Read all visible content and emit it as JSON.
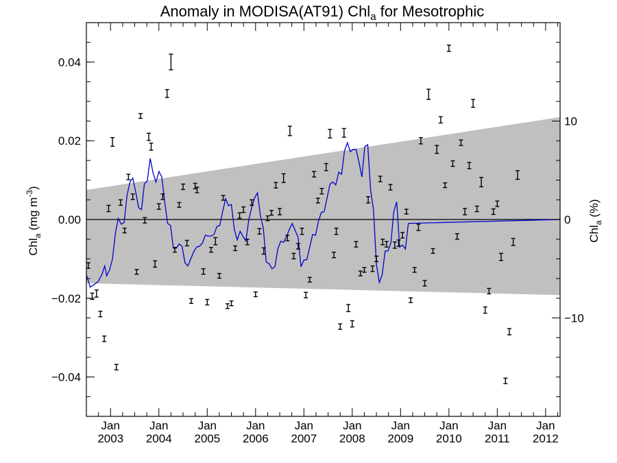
{
  "chart_data": {
    "type": "scatter",
    "title": "Anomaly in MODISA(AT91) Chl",
    "title_subscript": "a",
    "title_suffix": " for Mesotrophic",
    "ylabel_left": {
      "main": "Chl",
      "sub": "a",
      "units": " (mg m",
      "sup": "-3",
      "close": ")"
    },
    "ylabel_right": {
      "main": "Chl",
      "sub": "a",
      "units": " (%)"
    },
    "xlim": [
      2002.5,
      2012.3
    ],
    "ylim": [
      -0.05,
      0.05
    ],
    "ylim_right": [
      -20,
      20
    ],
    "x_month_label": "Jan",
    "x_ticks": [
      {
        "x": 2003.0,
        "year": "2003"
      },
      {
        "x": 2004.0,
        "year": "2004"
      },
      {
        "x": 2005.0,
        "year": "2005"
      },
      {
        "x": 2006.0,
        "year": "2006"
      },
      {
        "x": 2007.0,
        "year": "2007"
      },
      {
        "x": 2008.0,
        "year": "2008"
      },
      {
        "x": 2009.0,
        "year": "2009"
      },
      {
        "x": 2010.0,
        "year": "2010"
      },
      {
        "x": 2011.0,
        "year": "2011"
      },
      {
        "x": 2012.0,
        "year": "2012"
      }
    ],
    "y_ticks_left": [
      {
        "v": 0.04,
        "label": "0.04"
      },
      {
        "v": 0.02,
        "label": "0.02"
      },
      {
        "v": 0.0,
        "label": "0.00"
      },
      {
        "v": -0.02,
        "label": "−0.02"
      },
      {
        "v": -0.04,
        "label": "−0.04"
      }
    ],
    "y_ticks_right": [
      {
        "v": 10,
        "label": "10"
      },
      {
        "v": 0,
        "label": "0"
      },
      {
        "v": -10,
        "label": "−10"
      }
    ],
    "band": {
      "start": [
        2002.5,
        0.0075,
        -0.0162
      ],
      "end": [
        2012.3,
        0.026,
        -0.0192
      ],
      "color": "#c0c0c0"
    },
    "zero_line": 0,
    "line_color": "#0000cc",
    "marker_color": "#000000",
    "points": [
      [
        2002.54,
        -0.0117,
        0.0007
      ],
      [
        2002.62,
        -0.0195,
        0.0008
      ],
      [
        2002.71,
        -0.0188,
        0.0009
      ],
      [
        2002.79,
        -0.024,
        0.0007
      ],
      [
        2002.87,
        -0.0303,
        0.0007
      ],
      [
        2002.96,
        0.0028,
        0.0008
      ],
      [
        2003.04,
        0.0197,
        0.0011
      ],
      [
        2003.12,
        -0.0375,
        0.0007
      ],
      [
        2003.21,
        0.0043,
        0.0007
      ],
      [
        2003.29,
        -0.0028,
        0.0006
      ],
      [
        2003.37,
        0.0108,
        0.0007
      ],
      [
        2003.46,
        0.0058,
        0.0007
      ],
      [
        2003.54,
        -0.0133,
        0.0006
      ],
      [
        2003.62,
        0.0263,
        0.0006
      ],
      [
        2003.71,
        -0.0002,
        0.0007
      ],
      [
        2003.79,
        0.021,
        0.0009
      ],
      [
        2003.84,
        0.0185,
        0.0009
      ],
      [
        2003.92,
        -0.0113,
        0.0008
      ],
      [
        2004.0,
        0.0033,
        0.0007
      ],
      [
        2004.08,
        0.0058,
        0.0007
      ],
      [
        2004.17,
        0.032,
        0.001
      ],
      [
        2004.25,
        0.04,
        0.002
      ],
      [
        2004.33,
        -0.0077,
        0.0006
      ],
      [
        2004.42,
        0.0037,
        0.0006
      ],
      [
        2004.5,
        0.0083,
        0.0007
      ],
      [
        2004.58,
        -0.006,
        0.0007
      ],
      [
        2004.67,
        -0.0207,
        0.0006
      ],
      [
        2004.75,
        0.0085,
        0.0007
      ],
      [
        2004.79,
        0.0075,
        0.0007
      ],
      [
        2004.92,
        -0.0132,
        0.0007
      ],
      [
        2005.0,
        -0.021,
        0.0007
      ],
      [
        2005.08,
        -0.0077,
        0.0006
      ],
      [
        2005.17,
        -0.0055,
        0.0009
      ],
      [
        2005.25,
        -0.0143,
        0.0006
      ],
      [
        2005.33,
        0.0055,
        0.0006
      ],
      [
        2005.42,
        -0.022,
        0.0006
      ],
      [
        2005.5,
        -0.0213,
        0.0006
      ],
      [
        2005.58,
        -0.0073,
        0.0006
      ],
      [
        2005.67,
        0.001,
        0.0007
      ],
      [
        2005.75,
        0.0025,
        0.0007
      ],
      [
        2005.83,
        -0.0057,
        0.0007
      ],
      [
        2005.92,
        0.0043,
        0.0007
      ],
      [
        2006.0,
        -0.019,
        0.0006
      ],
      [
        2006.08,
        -0.003,
        0.0007
      ],
      [
        2006.17,
        -0.008,
        0.0008
      ],
      [
        2006.25,
        0.0003,
        0.0006
      ],
      [
        2006.33,
        0.0017,
        0.0006
      ],
      [
        2006.42,
        0.0087,
        0.0007
      ],
      [
        2006.5,
        0.002,
        0.0008
      ],
      [
        2006.58,
        0.0105,
        0.0011
      ],
      [
        2006.66,
        -0.0047,
        0.0007
      ],
      [
        2006.71,
        0.0225,
        0.0012
      ],
      [
        2006.79,
        -0.0093,
        0.0007
      ],
      [
        2006.88,
        -0.0068,
        0.0007
      ],
      [
        2006.96,
        -0.003,
        0.0008
      ],
      [
        2007.04,
        -0.0192,
        0.0007
      ],
      [
        2007.12,
        -0.0153,
        0.0006
      ],
      [
        2007.21,
        0.0115,
        0.0007
      ],
      [
        2007.29,
        0.0048,
        0.0006
      ],
      [
        2007.37,
        0.0072,
        0.0007
      ],
      [
        2007.46,
        0.0133,
        0.0009
      ],
      [
        2007.54,
        0.0218,
        0.0011
      ],
      [
        2007.62,
        -0.009,
        0.0007
      ],
      [
        2007.67,
        -0.003,
        0.0008
      ],
      [
        2007.75,
        -0.0272,
        0.0007
      ],
      [
        2007.83,
        0.022,
        0.0011
      ],
      [
        2007.92,
        -0.0225,
        0.0009
      ],
      [
        2008.0,
        -0.0265,
        0.0008
      ],
      [
        2008.08,
        -0.0063,
        0.0007
      ],
      [
        2008.17,
        -0.0137,
        0.0006
      ],
      [
        2008.25,
        -0.0128,
        0.0006
      ],
      [
        2008.33,
        0.005,
        0.0008
      ],
      [
        2008.42,
        -0.0125,
        0.0007
      ],
      [
        2008.5,
        -0.01,
        0.0007
      ],
      [
        2008.58,
        0.0103,
        0.0007
      ],
      [
        2008.63,
        -0.0057,
        0.0007
      ],
      [
        2008.71,
        -0.0063,
        0.0007
      ],
      [
        2008.79,
        0.0082,
        0.0007
      ],
      [
        2008.88,
        -0.0065,
        0.0008
      ],
      [
        2008.96,
        -0.006,
        0.0008
      ],
      [
        2009.04,
        -0.004,
        0.0007
      ],
      [
        2009.12,
        0.002,
        0.0006
      ],
      [
        2009.21,
        -0.0205,
        0.0006
      ],
      [
        2009.29,
        -0.0128,
        0.0006
      ],
      [
        2009.37,
        -0.002,
        0.0008
      ],
      [
        2009.42,
        0.02,
        0.0008
      ],
      [
        2009.5,
        -0.0162,
        0.0007
      ],
      [
        2009.58,
        0.0318,
        0.0013
      ],
      [
        2009.67,
        -0.008,
        0.0006
      ],
      [
        2009.75,
        0.0178,
        0.001
      ],
      [
        2009.83,
        0.0253,
        0.0008
      ],
      [
        2009.92,
        0.0087,
        0.0006
      ],
      [
        2010.0,
        0.0435,
        0.0008
      ],
      [
        2010.08,
        0.0142,
        0.0007
      ],
      [
        2010.17,
        -0.0043,
        0.0007
      ],
      [
        2010.25,
        0.0195,
        0.0007
      ],
      [
        2010.33,
        0.002,
        0.0008
      ],
      [
        2010.42,
        0.0137,
        0.0008
      ],
      [
        2010.5,
        0.0295,
        0.001
      ],
      [
        2010.58,
        0.0027,
        0.0007
      ],
      [
        2010.67,
        0.0095,
        0.0012
      ],
      [
        2010.75,
        -0.023,
        0.0008
      ],
      [
        2010.83,
        -0.0182,
        0.0007
      ],
      [
        2010.92,
        0.002,
        0.0007
      ],
      [
        2011.0,
        0.004,
        0.0007
      ],
      [
        2011.08,
        -0.0095,
        0.0009
      ],
      [
        2011.17,
        -0.041,
        0.0007
      ],
      [
        2011.25,
        -0.0285,
        0.0008
      ],
      [
        2011.33,
        -0.0057,
        0.0009
      ],
      [
        2011.42,
        0.0113,
        0.0011
      ]
    ],
    "line": [
      [
        2002.5,
        -0.014
      ],
      [
        2002.58,
        -0.0172
      ],
      [
        2002.66,
        -0.0165
      ],
      [
        2002.74,
        -0.0158
      ],
      [
        2002.82,
        -0.014
      ],
      [
        2002.88,
        -0.0118
      ],
      [
        2002.92,
        -0.0143
      ],
      [
        2002.98,
        -0.0128
      ],
      [
        2003.04,
        -0.01
      ],
      [
        2003.1,
        -0.0035
      ],
      [
        2003.16,
        0.0003
      ],
      [
        2003.22,
        -0.0012
      ],
      [
        2003.28,
        -0.0008
      ],
      [
        2003.34,
        0.006
      ],
      [
        2003.4,
        0.0095
      ],
      [
        2003.46,
        0.0105
      ],
      [
        2003.52,
        0.007
      ],
      [
        2003.58,
        0.003
      ],
      [
        2003.64,
        0.0025
      ],
      [
        2003.7,
        0.009
      ],
      [
        2003.76,
        0.0098
      ],
      [
        2003.82,
        0.0155
      ],
      [
        2003.88,
        0.0118
      ],
      [
        2003.94,
        0.0095
      ],
      [
        2004.0,
        0.0122
      ],
      [
        2004.06,
        0.0108
      ],
      [
        2004.12,
        0.0045
      ],
      [
        2004.18,
        -0.001
      ],
      [
        2004.24,
        -0.0015
      ],
      [
        2004.3,
        -0.0073
      ],
      [
        2004.36,
        -0.0073
      ],
      [
        2004.42,
        -0.0062
      ],
      [
        2004.48,
        -0.0068
      ],
      [
        2004.54,
        -0.011
      ],
      [
        2004.6,
        -0.0118
      ],
      [
        2004.66,
        -0.01
      ],
      [
        2004.72,
        -0.0082
      ],
      [
        2004.78,
        -0.007
      ],
      [
        2004.84,
        -0.0068
      ],
      [
        2004.9,
        -0.006
      ],
      [
        2004.96,
        -0.004
      ],
      [
        2005.02,
        -0.0042
      ],
      [
        2005.08,
        -0.0042
      ],
      [
        2005.14,
        -0.0038
      ],
      [
        2005.2,
        -0.0018
      ],
      [
        2005.26,
        -0.0015
      ],
      [
        2005.32,
        0.002
      ],
      [
        2005.38,
        0.0053
      ],
      [
        2005.44,
        0.0035
      ],
      [
        2005.5,
        0.0038
      ],
      [
        2005.56,
        -0.0025
      ],
      [
        2005.62,
        -0.0052
      ],
      [
        2005.68,
        -0.003
      ],
      [
        2005.74,
        -0.0043
      ],
      [
        2005.8,
        -0.0055
      ],
      [
        2005.86,
        0.0
      ],
      [
        2005.92,
        0.003
      ],
      [
        2005.98,
        0.0055
      ],
      [
        2006.04,
        0.0068
      ],
      [
        2006.1,
        0.001
      ],
      [
        2006.16,
        -0.0022
      ],
      [
        2006.22,
        -0.0108
      ],
      [
        2006.28,
        -0.0112
      ],
      [
        2006.34,
        -0.0125
      ],
      [
        2006.4,
        -0.012
      ],
      [
        2006.46,
        -0.0075
      ],
      [
        2006.52,
        -0.0055
      ],
      [
        2006.58,
        -0.0058
      ],
      [
        2006.64,
        -0.0043
      ],
      [
        2006.7,
        -0.0025
      ],
      [
        2006.76,
        -0.001
      ],
      [
        2006.82,
        -0.0028
      ],
      [
        2006.88,
        -0.0045
      ],
      [
        2006.94,
        -0.012
      ],
      [
        2007.0,
        -0.0103
      ],
      [
        2007.06,
        -0.0102
      ],
      [
        2007.12,
        -0.007
      ],
      [
        2007.18,
        -0.0038
      ],
      [
        2007.24,
        -0.004
      ],
      [
        2007.3,
        -0.0005
      ],
      [
        2007.36,
        0.0018
      ],
      [
        2007.42,
        0.002
      ],
      [
        2007.48,
        0.0055
      ],
      [
        2007.54,
        0.009
      ],
      [
        2007.6,
        0.0095
      ],
      [
        2007.66,
        0.0088
      ],
      [
        2007.72,
        0.012
      ],
      [
        2007.78,
        0.0115
      ],
      [
        2007.84,
        0.0175
      ],
      [
        2007.9,
        0.0195
      ],
      [
        2007.96,
        0.0172
      ],
      [
        2008.02,
        0.0178
      ],
      [
        2008.08,
        0.0178
      ],
      [
        2008.14,
        0.0145
      ],
      [
        2008.2,
        0.0108
      ],
      [
        2008.26,
        0.0185
      ],
      [
        2008.32,
        0.019
      ],
      [
        2008.38,
        0.0075
      ],
      [
        2008.44,
        0.0025
      ],
      [
        2008.5,
        -0.0115
      ],
      [
        2008.56,
        -0.016
      ],
      [
        2008.62,
        -0.014
      ],
      [
        2008.68,
        -0.008
      ],
      [
        2008.74,
        -0.008
      ],
      [
        2008.8,
        -0.006
      ],
      [
        2008.86,
        0.002
      ],
      [
        2008.92,
        0.0045
      ],
      [
        2008.98,
        -0.007
      ],
      [
        2009.04,
        -0.0065
      ],
      [
        2009.1,
        -0.0075
      ],
      [
        2009.16,
        -0.001
      ],
      [
        2012.3,
        0.0
      ]
    ]
  }
}
